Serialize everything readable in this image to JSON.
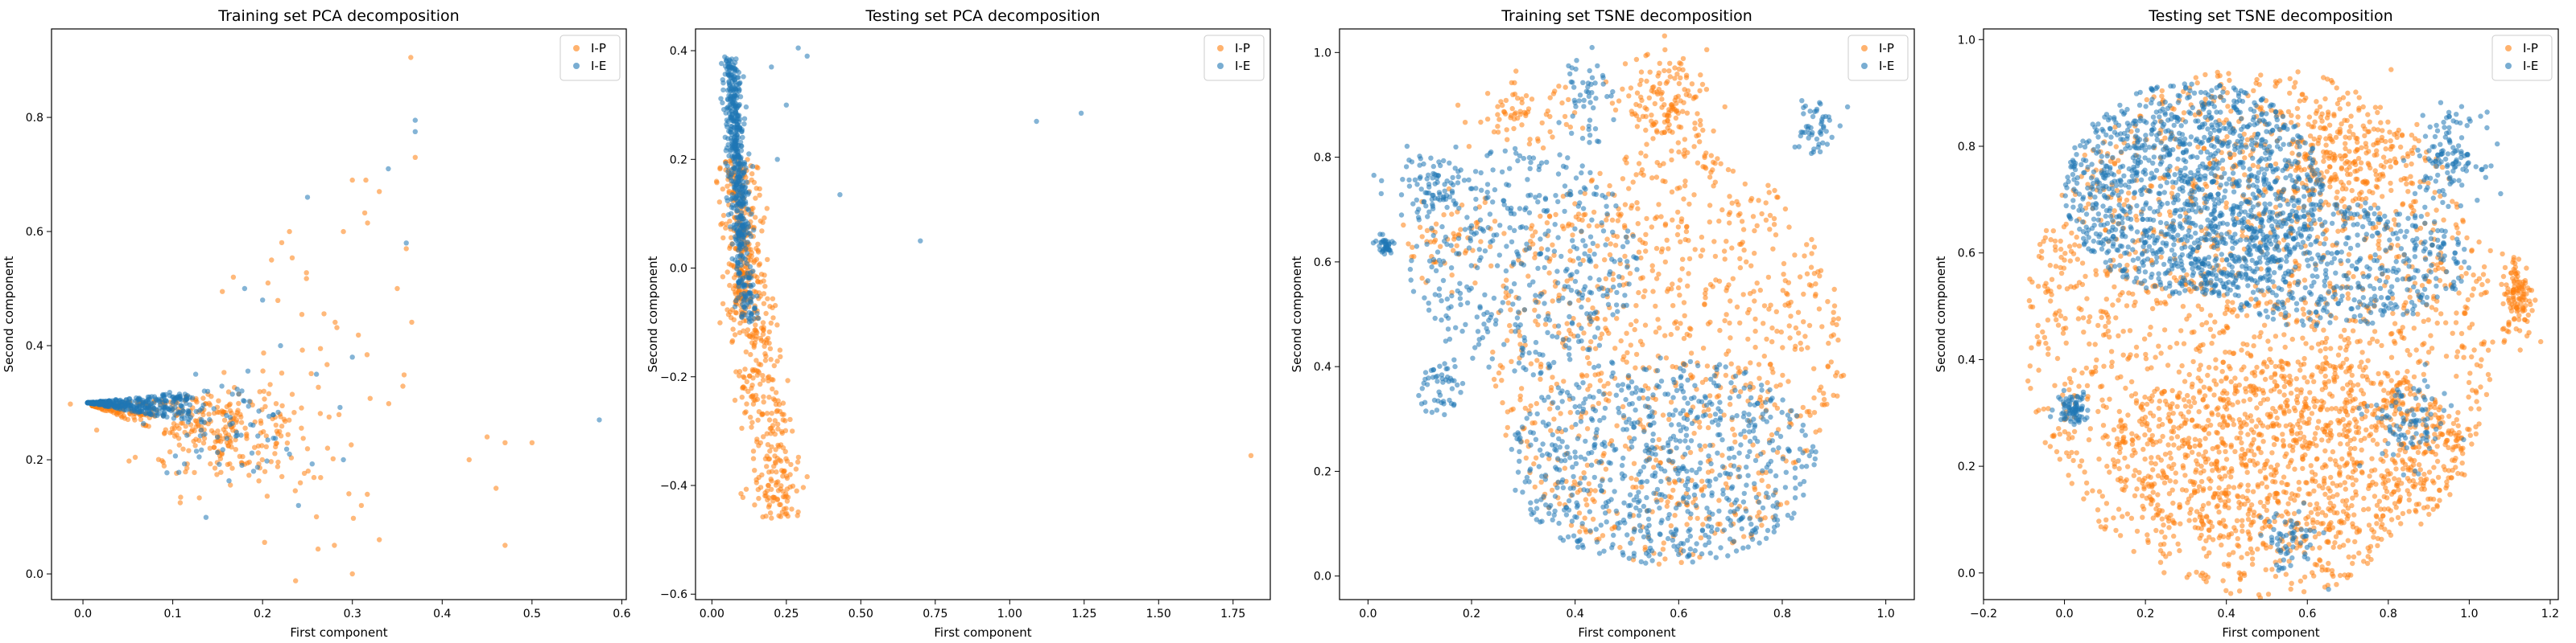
{
  "figure": {
    "colors": {
      "I-P": "#ff7f0e",
      "I-E": "#1f77b4",
      "frame": "#000000",
      "legend_border": "#cccccc"
    }
  },
  "chart_data": [
    {
      "type": "scatter",
      "title": "Training set PCA decomposition",
      "xlabel": "First component",
      "ylabel": "Second component",
      "xlim": [
        -0.035,
        0.605
      ],
      "ylim": [
        -0.045,
        0.955
      ],
      "xticks": [
        0.0,
        0.1,
        0.2,
        0.3,
        0.4,
        0.5,
        0.6
      ],
      "xtick_labels": [
        "0.0",
        "0.1",
        "0.2",
        "0.3",
        "0.4",
        "0.5",
        "0.6"
      ],
      "yticks": [
        0.0,
        0.2,
        0.4,
        0.6,
        0.8
      ],
      "ytick_labels": [
        "0.0",
        "0.2",
        "0.4",
        "0.6",
        "0.8"
      ],
      "legend": "top-right",
      "grid": false,
      "series": [
        {
          "name": "I-P",
          "color": "#ff7f0e",
          "clusters": [
            {
              "kind": "wedge",
              "n": 260,
              "x0": 0.01,
              "y0": 0.295,
              "x1": 0.23,
              "y_low": 0.16,
              "y_high": 0.33
            },
            {
              "kind": "gauss",
              "n": 120,
              "cx": 0.16,
              "cy": 0.24,
              "sx": 0.05,
              "sy": 0.05
            },
            {
              "kind": "gauss",
              "n": 50,
              "cx": 0.26,
              "cy": 0.33,
              "sx": 0.06,
              "sy": 0.13
            }
          ],
          "points": [
            [
              0.365,
              0.905
            ],
            [
              0.3,
              0.69
            ],
            [
              0.315,
              0.69
            ],
            [
              0.33,
              0.67
            ],
            [
              0.29,
              0.6
            ],
            [
              0.35,
              0.5
            ],
            [
              0.37,
              0.73
            ],
            [
              0.36,
              0.57
            ],
            [
              0.45,
              0.24
            ],
            [
              0.47,
              0.23
            ],
            [
              0.5,
              0.23
            ],
            [
              0.43,
              0.2
            ],
            [
              0.46,
              0.15
            ],
            [
              0.47,
              0.05
            ],
            [
              0.3,
              0.0
            ],
            [
              0.28,
              0.05
            ],
            [
              0.26,
              0.1
            ],
            [
              0.31,
              0.12
            ],
            [
              0.33,
              0.06
            ],
            [
              0.21,
              0.55
            ],
            [
              0.23,
              0.6
            ]
          ]
        },
        {
          "name": "I-E",
          "color": "#1f77b4",
          "clusters": [
            {
              "kind": "wedge",
              "n": 380,
              "x0": 0.005,
              "y0": 0.3,
              "x1": 0.12,
              "y_low": 0.265,
              "y_high": 0.32
            },
            {
              "kind": "gauss",
              "n": 70,
              "cx": 0.16,
              "cy": 0.26,
              "sx": 0.04,
              "sy": 0.04
            }
          ],
          "points": [
            [
              0.37,
              0.795
            ],
            [
              0.37,
              0.775
            ],
            [
              0.575,
              0.27
            ],
            [
              0.34,
              0.71
            ],
            [
              0.36,
              0.58
            ],
            [
              0.2,
              0.48
            ],
            [
              0.18,
              0.5
            ],
            [
              0.25,
              0.66
            ],
            [
              0.29,
              0.2
            ],
            [
              0.23,
              0.21
            ],
            [
              0.26,
              0.35
            ],
            [
              0.3,
              0.38
            ],
            [
              0.22,
              0.4
            ],
            [
              0.24,
              0.12
            ],
            [
              0.19,
              0.18
            ]
          ]
        }
      ]
    },
    {
      "type": "scatter",
      "title": "Testing set PCA decomposition",
      "xlabel": "First component",
      "ylabel": "Second component",
      "xlim": [
        -0.055,
        1.875
      ],
      "ylim": [
        -0.61,
        0.44
      ],
      "xticks": [
        0.0,
        0.25,
        0.5,
        0.75,
        1.0,
        1.25,
        1.5,
        1.75
      ],
      "xtick_labels": [
        "0.00",
        "0.25",
        "0.50",
        "0.75",
        "1.00",
        "1.25",
        "1.50",
        "1.75"
      ],
      "yticks": [
        -0.6,
        -0.4,
        -0.2,
        0.0,
        0.2,
        0.4
      ],
      "ytick_labels": [
        "−0.6",
        "−0.4",
        "−0.2",
        "0.0",
        "0.2",
        "0.4"
      ],
      "legend": "top-right",
      "grid": false,
      "series": [
        {
          "name": "I-P",
          "color": "#ff7f0e",
          "clusters": [
            {
              "kind": "band",
              "n": 450,
              "y_min": -0.46,
              "y_max": 0.2,
              "x_at_top": 0.075,
              "x_slope": -0.23,
              "x_spread": 0.035
            },
            {
              "kind": "gauss",
              "n": 110,
              "cx": 0.1,
              "cy": -0.02,
              "sx": 0.02,
              "sy": 0.06
            }
          ],
          "points": [
            [
              1.81,
              -0.345
            ],
            [
              0.25,
              -0.42
            ],
            [
              0.2,
              -0.46
            ],
            [
              0.22,
              -0.35
            ],
            [
              0.27,
              -0.3
            ],
            [
              0.19,
              -0.4
            ]
          ]
        },
        {
          "name": "I-E",
          "color": "#1f77b4",
          "clusters": [
            {
              "kind": "band",
              "n": 450,
              "y_min": 0.05,
              "y_max": 0.39,
              "x_at_top": 0.06,
              "x_slope": -0.12,
              "x_spread": 0.014
            },
            {
              "kind": "band",
              "n": 110,
              "y_min": -0.1,
              "y_max": 0.05,
              "x_at_top": 0.09,
              "x_slope": -0.25,
              "x_spread": 0.015
            }
          ],
          "points": [
            [
              0.29,
              0.405
            ],
            [
              0.32,
              0.39
            ],
            [
              0.43,
              0.135
            ],
            [
              0.7,
              0.05
            ],
            [
              1.09,
              0.27
            ],
            [
              1.24,
              0.285
            ],
            [
              0.2,
              0.37
            ],
            [
              0.25,
              0.3
            ],
            [
              0.22,
              0.2
            ]
          ]
        }
      ]
    },
    {
      "type": "scatter",
      "title": "Training set TSNE decomposition",
      "xlabel": "First component",
      "ylabel": "Second component",
      "xlim": [
        -0.055,
        1.055
      ],
      "ylim": [
        -0.045,
        1.045
      ],
      "xticks": [
        0.0,
        0.2,
        0.4,
        0.6,
        0.8,
        1.0
      ],
      "xtick_labels": [
        "0.0",
        "0.2",
        "0.4",
        "0.6",
        "0.8",
        "1.0"
      ],
      "yticks": [
        0.0,
        0.2,
        0.4,
        0.6,
        0.8,
        1.0
      ],
      "ytick_labels": [
        "0.0",
        "0.2",
        "0.4",
        "0.6",
        "0.8",
        "1.0"
      ],
      "legend": "top-right",
      "grid": false,
      "series": [
        {
          "name": "I-P",
          "color": "#ff7f0e",
          "clusters": [
            {
              "kind": "disc",
              "n": 900,
              "cx": 0.58,
              "cy": 0.42,
              "rx": 0.34,
              "ry": 0.4
            },
            {
              "kind": "gauss",
              "n": 150,
              "cx": 0.58,
              "cy": 0.9,
              "sx": 0.04,
              "sy": 0.05
            },
            {
              "kind": "gauss",
              "n": 60,
              "cx": 0.16,
              "cy": 0.64,
              "sx": 0.05,
              "sy": 0.04
            },
            {
              "kind": "gauss",
              "n": 70,
              "cx": 0.3,
              "cy": 0.88,
              "sx": 0.05,
              "sy": 0.03
            }
          ],
          "points": []
        },
        {
          "name": "I-E",
          "color": "#1f77b4",
          "clusters": [
            {
              "kind": "disc",
              "n": 700,
              "cx": 0.57,
              "cy": 0.22,
              "rx": 0.3,
              "ry": 0.2
            },
            {
              "kind": "disc",
              "n": 400,
              "cx": 0.3,
              "cy": 0.6,
              "rx": 0.22,
              "ry": 0.22
            },
            {
              "kind": "gauss",
              "n": 80,
              "cx": 0.12,
              "cy": 0.75,
              "sx": 0.04,
              "sy": 0.03
            },
            {
              "kind": "gauss",
              "n": 50,
              "cx": 0.42,
              "cy": 0.93,
              "sx": 0.02,
              "sy": 0.05
            },
            {
              "kind": "gauss",
              "n": 50,
              "cx": 0.86,
              "cy": 0.86,
              "sx": 0.02,
              "sy": 0.03
            },
            {
              "kind": "gauss",
              "n": 40,
              "cx": 0.03,
              "cy": 0.63,
              "sx": 0.01,
              "sy": 0.01
            },
            {
              "kind": "gauss",
              "n": 50,
              "cx": 0.14,
              "cy": 0.36,
              "sx": 0.02,
              "sy": 0.03
            }
          ],
          "points": []
        }
      ]
    },
    {
      "type": "scatter",
      "title": "Testing set TSNE decomposition",
      "xlabel": "First component",
      "ylabel": "Second component",
      "xlim": [
        -0.2,
        1.22
      ],
      "ylim": [
        -0.05,
        1.02
      ],
      "xticks": [
        -0.2,
        0.0,
        0.2,
        0.4,
        0.6,
        0.8,
        1.0,
        1.2
      ],
      "xtick_labels": [
        "−0.2",
        "0.0",
        "0.2",
        "0.4",
        "0.6",
        "0.8",
        "1.0",
        "1.2"
      ],
      "yticks": [
        0.0,
        0.2,
        0.4,
        0.6,
        0.8,
        1.0
      ],
      "ytick_labels": [
        "0.0",
        "0.2",
        "0.4",
        "0.6",
        "0.8",
        "1.0"
      ],
      "legend": "top-right",
      "grid": false,
      "series": [
        {
          "name": "I-P",
          "color": "#ff7f0e",
          "clusters": [
            {
              "kind": "disc",
              "n": 1800,
              "cx": 0.48,
              "cy": 0.45,
              "rx": 0.58,
              "ry": 0.5
            },
            {
              "kind": "disc",
              "n": 900,
              "cx": 0.55,
              "cy": 0.22,
              "rx": 0.45,
              "ry": 0.18
            },
            {
              "kind": "gauss",
              "n": 120,
              "cx": 1.12,
              "cy": 0.52,
              "sx": 0.02,
              "sy": 0.04
            },
            {
              "kind": "gauss",
              "n": 200,
              "cx": 0.68,
              "cy": 0.78,
              "sx": 0.08,
              "sy": 0.06
            }
          ],
          "points": []
        },
        {
          "name": "I-E",
          "color": "#1f77b4",
          "clusters": [
            {
              "kind": "disc",
              "n": 1300,
              "cx": 0.32,
              "cy": 0.72,
              "rx": 0.32,
              "ry": 0.2
            },
            {
              "kind": "disc",
              "n": 500,
              "cx": 0.65,
              "cy": 0.58,
              "rx": 0.35,
              "ry": 0.12
            },
            {
              "kind": "gauss",
              "n": 80,
              "cx": 0.02,
              "cy": 0.31,
              "sx": 0.02,
              "sy": 0.015
            },
            {
              "kind": "gauss",
              "n": 120,
              "cx": 0.95,
              "cy": 0.78,
              "sx": 0.04,
              "sy": 0.04
            },
            {
              "kind": "gauss",
              "n": 90,
              "cx": 0.85,
              "cy": 0.28,
              "sx": 0.05,
              "sy": 0.04
            },
            {
              "kind": "gauss",
              "n": 60,
              "cx": 0.55,
              "cy": 0.06,
              "sx": 0.04,
              "sy": 0.03
            }
          ],
          "points": []
        }
      ]
    }
  ]
}
